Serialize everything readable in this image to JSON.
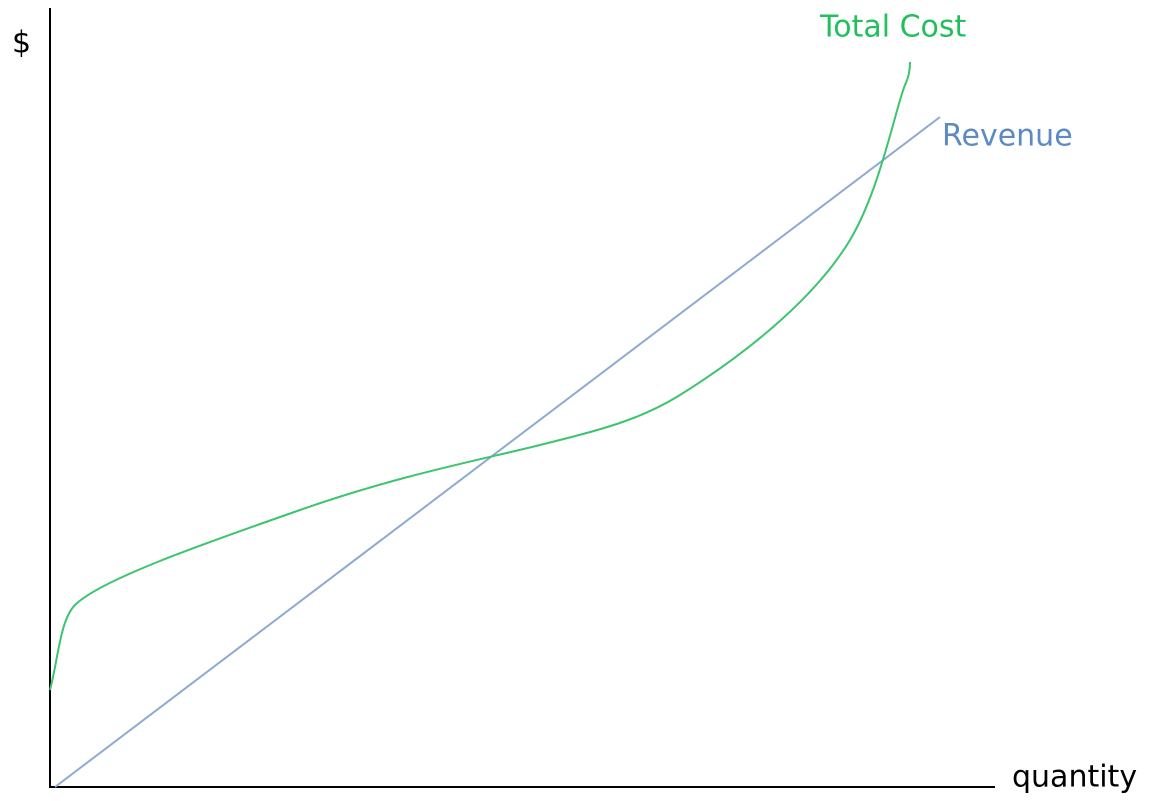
{
  "axes": {
    "y_label": "$",
    "x_label": "quantity"
  },
  "curves": [
    {
      "label": "Total Cost"
    },
    {
      "label": "Revenue"
    }
  ]
}
